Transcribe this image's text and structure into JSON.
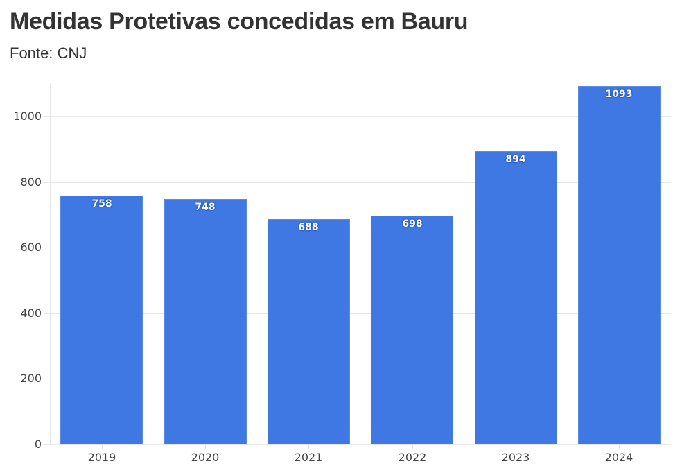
{
  "header": {
    "title": "Medidas Protetivas concedidas em Bauru",
    "subtitle": "Fonte: CNJ"
  },
  "colors": {
    "bar": "#3f78e2",
    "grid": "#e8e8e8",
    "text": "#333333"
  },
  "chart_data": {
    "type": "bar",
    "title": "Medidas Protetivas concedidas em Bauru",
    "subtitle": "Fonte: CNJ",
    "xlabel": "",
    "ylabel": "",
    "categories": [
      "2019",
      "2020",
      "2021",
      "2022",
      "2023",
      "2024"
    ],
    "values": [
      758,
      748,
      688,
      698,
      894,
      1093
    ],
    "data_labels": [
      "758",
      "748",
      "688",
      "698",
      "894",
      "1093"
    ],
    "ylim": [
      0,
      1100
    ],
    "yticks": [
      0,
      200,
      400,
      600,
      800,
      1000
    ],
    "ytick_labels": [
      "0",
      "200",
      "400",
      "600",
      "800",
      "1000"
    ],
    "grid": true,
    "legend": null,
    "color": "#3f78e2"
  }
}
